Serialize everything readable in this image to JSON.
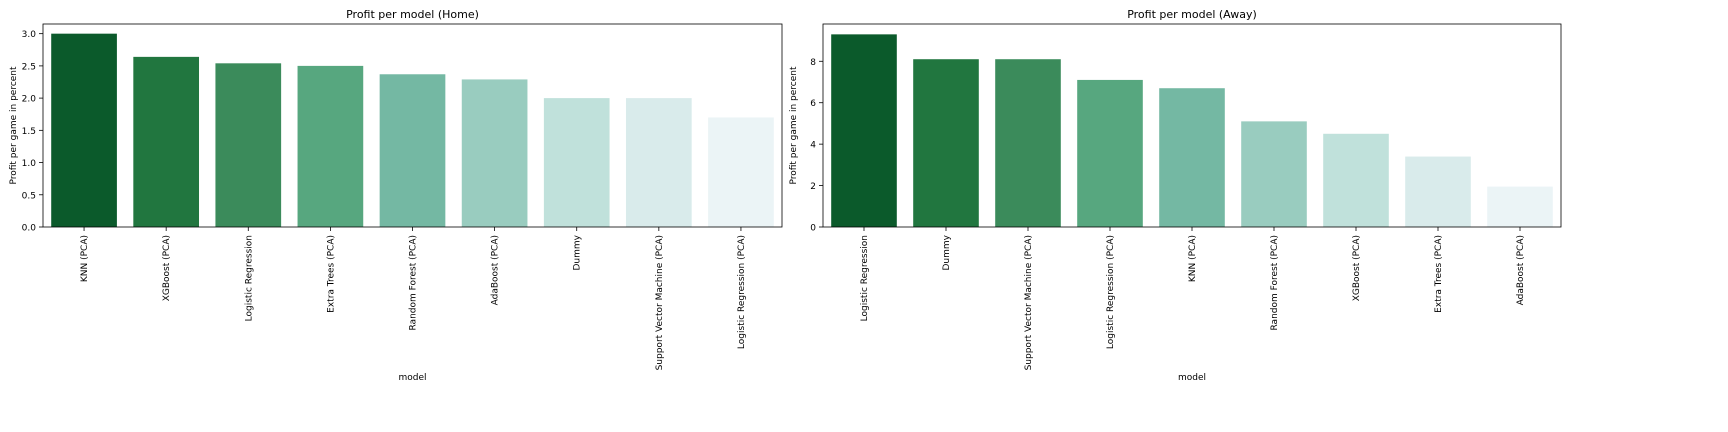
{
  "chart_data": [
    {
      "type": "bar",
      "title": "Profit per model (Home)",
      "xlabel": "model",
      "ylabel": "Profit per game in percent",
      "categories": [
        "KNN (PCA)",
        "XGBoost (PCA)",
        "Logistic Regression",
        "Extra Trees (PCA)",
        "Random Forest (PCA)",
        "AdaBoost (PCA)",
        "Dummy",
        "Support Vector Machine (PCA)",
        "Logistic Regression (PCA)"
      ],
      "values": [
        3.0,
        2.64,
        2.54,
        2.5,
        2.37,
        2.29,
        2.0,
        2.0,
        1.7
      ],
      "ylim": [
        0,
        3.15
      ],
      "yticks": [
        0.0,
        0.5,
        1.0,
        1.5,
        2.0,
        2.5,
        3.0
      ],
      "ytick_labels": [
        "0.0",
        "0.5",
        "1.0",
        "1.5",
        "2.0",
        "2.5",
        "3.0"
      ],
      "colors": [
        "#0b5a2b",
        "#21763f",
        "#3b8b5b",
        "#57a77f",
        "#74b8a3",
        "#99ccbf",
        "#c0e1db",
        "#d9ebeb",
        "#ebf4f6"
      ],
      "grid": false,
      "legend": "none"
    },
    {
      "type": "bar",
      "title": "Profit per model (Away)",
      "xlabel": "model",
      "ylabel": "Profit per game in percent",
      "categories": [
        "Logistic Regression",
        "Dummy",
        "Support Vector Machine (PCA)",
        "Logistic Regression (PCA)",
        "KNN (PCA)",
        "Random Forest (PCA)",
        "XGBoost (PCA)",
        "Extra Trees (PCA)",
        "AdaBoost (PCA)"
      ],
      "values": [
        9.3,
        8.1,
        8.1,
        7.1,
        6.7,
        5.1,
        4.5,
        3.4,
        1.95
      ],
      "ylim": [
        0,
        9.8
      ],
      "yticks": [
        0,
        2,
        4,
        6,
        8
      ],
      "ytick_labels": [
        "0",
        "2",
        "4",
        "6",
        "8"
      ],
      "colors": [
        "#0b5a2b",
        "#21763f",
        "#3b8b5b",
        "#57a77f",
        "#74b8a3",
        "#99ccbf",
        "#c0e1db",
        "#d9ebeb",
        "#ebf4f6"
      ],
      "grid": false,
      "legend": "none"
    }
  ]
}
